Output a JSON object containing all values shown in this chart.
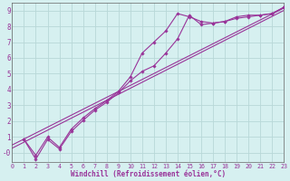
{
  "xlabel": "Windchill (Refroidissement éolien,°C)",
  "background_color": "#d6f0f0",
  "grid_color": "#b8d8d8",
  "line_color": "#993399",
  "xlim": [
    0,
    23
  ],
  "ylim": [
    -0.6,
    9.5
  ],
  "yticks": [
    0,
    1,
    2,
    3,
    4,
    5,
    6,
    7,
    8,
    9
  ],
  "xticks": [
    0,
    1,
    2,
    3,
    4,
    5,
    6,
    7,
    8,
    9,
    10,
    11,
    12,
    13,
    14,
    15,
    16,
    17,
    18,
    19,
    20,
    21,
    22,
    23
  ],
  "curve1_x": [
    1,
    2,
    3,
    4,
    5,
    6,
    7,
    8,
    9,
    10,
    11,
    12,
    13,
    14,
    15,
    16,
    17,
    18,
    19,
    20,
    21,
    22,
    23
  ],
  "curve1_y": [
    0.85,
    -0.15,
    1.0,
    0.35,
    1.5,
    2.2,
    2.8,
    3.3,
    3.9,
    4.8,
    6.3,
    7.0,
    7.7,
    8.8,
    8.6,
    8.3,
    8.2,
    8.3,
    8.6,
    8.7,
    8.7,
    8.8,
    9.2
  ],
  "curve2_x": [
    1,
    2,
    3,
    4,
    5,
    6,
    7,
    8,
    9,
    10,
    11,
    12,
    13,
    14,
    15,
    16,
    17,
    18,
    19,
    20,
    21,
    22,
    23
  ],
  "curve2_y": [
    0.85,
    -0.4,
    0.85,
    0.25,
    1.35,
    2.05,
    2.7,
    3.2,
    3.8,
    4.55,
    5.15,
    5.5,
    6.3,
    7.2,
    8.7,
    8.1,
    8.2,
    8.3,
    8.5,
    8.6,
    8.7,
    8.8,
    9.2
  ],
  "line1_x": [
    0,
    23
  ],
  "line1_y": [
    0.5,
    9.15
  ],
  "line2_x": [
    0,
    23
  ],
  "line2_y": [
    0.3,
    9.0
  ],
  "figwidth": 3.2,
  "figheight": 2.0,
  "dpi": 100
}
